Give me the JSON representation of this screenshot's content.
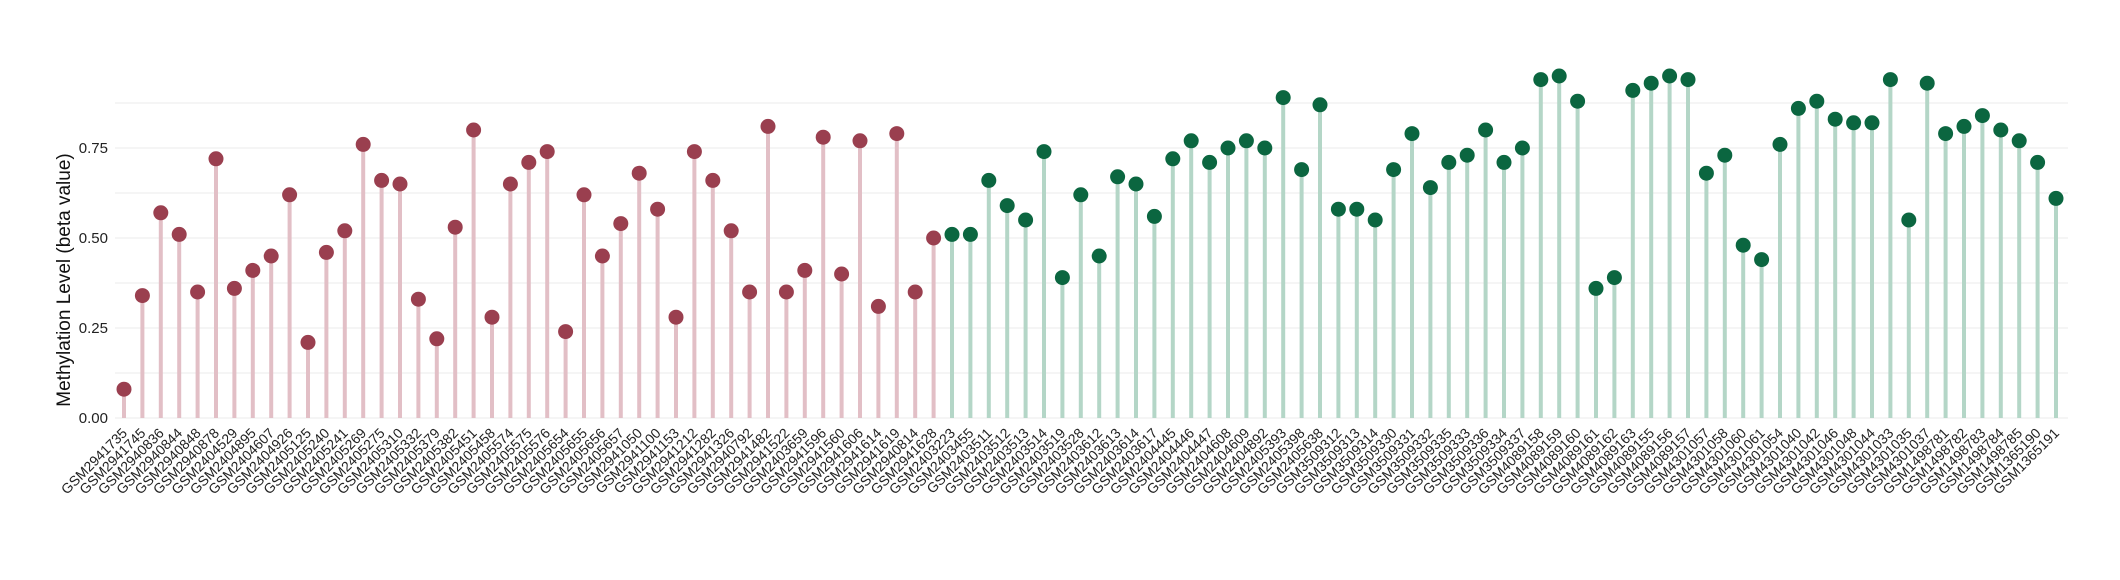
{
  "chart_data": {
    "type": "lollipop",
    "title": "",
    "xlabel": "",
    "ylabel": "Methylation Level (beta value)",
    "ylim": [
      0,
      1.0
    ],
    "yticks": [
      0.0,
      0.25,
      0.5,
      0.75
    ],
    "ytick_labels": [
      "0.00",
      "0.25",
      "0.50",
      "0.75"
    ],
    "grid": true,
    "colors": {
      "group1_stem": "#e2bfc6",
      "group1_dot": "#9a3f4f",
      "group2_stem": "#b4d6c7",
      "group2_dot": "#0b6640"
    },
    "samples": [
      {
        "label": "GSM2941735",
        "value": 0.08,
        "group": 1
      },
      {
        "label": "GSM2941745",
        "value": 0.34,
        "group": 1
      },
      {
        "label": "GSM2940836",
        "value": 0.57,
        "group": 1
      },
      {
        "label": "GSM2940844",
        "value": 0.51,
        "group": 1
      },
      {
        "label": "GSM2940848",
        "value": 0.35,
        "group": 1
      },
      {
        "label": "GSM2940878",
        "value": 0.72,
        "group": 1
      },
      {
        "label": "GSM2404529",
        "value": 0.36,
        "group": 1
      },
      {
        "label": "GSM2404895",
        "value": 0.41,
        "group": 1
      },
      {
        "label": "GSM2404607",
        "value": 0.45,
        "group": 1
      },
      {
        "label": "GSM2404926",
        "value": 0.62,
        "group": 1
      },
      {
        "label": "GSM2405125",
        "value": 0.21,
        "group": 1
      },
      {
        "label": "GSM2405240",
        "value": 0.46,
        "group": 1
      },
      {
        "label": "GSM2405241",
        "value": 0.52,
        "group": 1
      },
      {
        "label": "GSM2405269",
        "value": 0.76,
        "group": 1
      },
      {
        "label": "GSM2405275",
        "value": 0.66,
        "group": 1
      },
      {
        "label": "GSM2405310",
        "value": 0.65,
        "group": 1
      },
      {
        "label": "GSM2405332",
        "value": 0.33,
        "group": 1
      },
      {
        "label": "GSM2405379",
        "value": 0.22,
        "group": 1
      },
      {
        "label": "GSM2405382",
        "value": 0.53,
        "group": 1
      },
      {
        "label": "GSM2405451",
        "value": 0.8,
        "group": 1
      },
      {
        "label": "GSM2405458",
        "value": 0.28,
        "group": 1
      },
      {
        "label": "GSM2405574",
        "value": 0.65,
        "group": 1
      },
      {
        "label": "GSM2405575",
        "value": 0.71,
        "group": 1
      },
      {
        "label": "GSM2405576",
        "value": 0.74,
        "group": 1
      },
      {
        "label": "GSM2405654",
        "value": 0.24,
        "group": 1
      },
      {
        "label": "GSM2405655",
        "value": 0.62,
        "group": 1
      },
      {
        "label": "GSM2405656",
        "value": 0.45,
        "group": 1
      },
      {
        "label": "GSM2405657",
        "value": 0.54,
        "group": 1
      },
      {
        "label": "GSM2941050",
        "value": 0.68,
        "group": 1
      },
      {
        "label": "GSM2941100",
        "value": 0.58,
        "group": 1
      },
      {
        "label": "GSM2941153",
        "value": 0.28,
        "group": 1
      },
      {
        "label": "GSM2941212",
        "value": 0.74,
        "group": 1
      },
      {
        "label": "GSM2941282",
        "value": 0.66,
        "group": 1
      },
      {
        "label": "GSM2941326",
        "value": 0.52,
        "group": 1
      },
      {
        "label": "GSM2940792",
        "value": 0.35,
        "group": 1
      },
      {
        "label": "GSM2941482",
        "value": 0.81,
        "group": 1
      },
      {
        "label": "GSM2941522",
        "value": 0.35,
        "group": 1
      },
      {
        "label": "GSM2403659",
        "value": 0.41,
        "group": 1
      },
      {
        "label": "GSM2941596",
        "value": 0.78,
        "group": 1
      },
      {
        "label": "GSM2941560",
        "value": 0.4,
        "group": 1
      },
      {
        "label": "GSM2941606",
        "value": 0.77,
        "group": 1
      },
      {
        "label": "GSM2941614",
        "value": 0.31,
        "group": 1
      },
      {
        "label": "GSM2941619",
        "value": 0.79,
        "group": 1
      },
      {
        "label": "GSM2940814",
        "value": 0.35,
        "group": 1
      },
      {
        "label": "GSM2941628",
        "value": 0.5,
        "group": 1
      },
      {
        "label": "GSM2403223",
        "value": 0.51,
        "group": 2
      },
      {
        "label": "GSM2403455",
        "value": 0.51,
        "group": 2
      },
      {
        "label": "GSM2403511",
        "value": 0.66,
        "group": 2
      },
      {
        "label": "GSM2403512",
        "value": 0.59,
        "group": 2
      },
      {
        "label": "GSM2403513",
        "value": 0.55,
        "group": 2
      },
      {
        "label": "GSM2403514",
        "value": 0.74,
        "group": 2
      },
      {
        "label": "GSM2403519",
        "value": 0.39,
        "group": 2
      },
      {
        "label": "GSM2403528",
        "value": 0.62,
        "group": 2
      },
      {
        "label": "GSM2403612",
        "value": 0.45,
        "group": 2
      },
      {
        "label": "GSM2403613",
        "value": 0.67,
        "group": 2
      },
      {
        "label": "GSM2403614",
        "value": 0.65,
        "group": 2
      },
      {
        "label": "GSM2403617",
        "value": 0.56,
        "group": 2
      },
      {
        "label": "GSM2404445",
        "value": 0.72,
        "group": 2
      },
      {
        "label": "GSM2404446",
        "value": 0.77,
        "group": 2
      },
      {
        "label": "GSM2404447",
        "value": 0.71,
        "group": 2
      },
      {
        "label": "GSM2404608",
        "value": 0.75,
        "group": 2
      },
      {
        "label": "GSM2404609",
        "value": 0.77,
        "group": 2
      },
      {
        "label": "GSM2404892",
        "value": 0.75,
        "group": 2
      },
      {
        "label": "GSM2405393",
        "value": 0.89,
        "group": 2
      },
      {
        "label": "GSM2405398",
        "value": 0.69,
        "group": 2
      },
      {
        "label": "GSM2405638",
        "value": 0.87,
        "group": 2
      },
      {
        "label": "GSM3509312",
        "value": 0.58,
        "group": 2
      },
      {
        "label": "GSM3509313",
        "value": 0.58,
        "group": 2
      },
      {
        "label": "GSM3509314",
        "value": 0.55,
        "group": 2
      },
      {
        "label": "GSM3509330",
        "value": 0.69,
        "group": 2
      },
      {
        "label": "GSM3509331",
        "value": 0.79,
        "group": 2
      },
      {
        "label": "GSM3509332",
        "value": 0.64,
        "group": 2
      },
      {
        "label": "GSM3509335",
        "value": 0.71,
        "group": 2
      },
      {
        "label": "GSM3509333",
        "value": 0.73,
        "group": 2
      },
      {
        "label": "GSM3509336",
        "value": 0.8,
        "group": 2
      },
      {
        "label": "GSM3509334",
        "value": 0.71,
        "group": 2
      },
      {
        "label": "GSM3509337",
        "value": 0.75,
        "group": 2
      },
      {
        "label": "GSM4089158",
        "value": 0.94,
        "group": 2
      },
      {
        "label": "GSM4089159",
        "value": 0.95,
        "group": 2
      },
      {
        "label": "GSM4089160",
        "value": 0.88,
        "group": 2
      },
      {
        "label": "GSM4089161",
        "value": 0.36,
        "group": 2
      },
      {
        "label": "GSM4089162",
        "value": 0.39,
        "group": 2
      },
      {
        "label": "GSM4089163",
        "value": 0.91,
        "group": 2
      },
      {
        "label": "GSM4089155",
        "value": 0.93,
        "group": 2
      },
      {
        "label": "GSM4089156",
        "value": 0.95,
        "group": 2
      },
      {
        "label": "GSM4089157",
        "value": 0.94,
        "group": 2
      },
      {
        "label": "GSM4301057",
        "value": 0.68,
        "group": 2
      },
      {
        "label": "GSM4301058",
        "value": 0.73,
        "group": 2
      },
      {
        "label": "GSM4301060",
        "value": 0.48,
        "group": 2
      },
      {
        "label": "GSM4301061",
        "value": 0.44,
        "group": 2
      },
      {
        "label": "GSM4301054",
        "value": 0.76,
        "group": 2
      },
      {
        "label": "GSM4301040",
        "value": 0.86,
        "group": 2
      },
      {
        "label": "GSM4301042",
        "value": 0.88,
        "group": 2
      },
      {
        "label": "GSM4301046",
        "value": 0.83,
        "group": 2
      },
      {
        "label": "GSM4301048",
        "value": 0.82,
        "group": 2
      },
      {
        "label": "GSM4301044",
        "value": 0.82,
        "group": 2
      },
      {
        "label": "GSM4301033",
        "value": 0.94,
        "group": 2
      },
      {
        "label": "GSM4301035",
        "value": 0.55,
        "group": 2
      },
      {
        "label": "GSM4301037",
        "value": 0.93,
        "group": 2
      },
      {
        "label": "GSM1498781",
        "value": 0.79,
        "group": 2
      },
      {
        "label": "GSM1498782",
        "value": 0.81,
        "group": 2
      },
      {
        "label": "GSM1498783",
        "value": 0.84,
        "group": 2
      },
      {
        "label": "GSM1498784",
        "value": 0.8,
        "group": 2
      },
      {
        "label": "GSM1498785",
        "value": 0.77,
        "group": 2
      },
      {
        "label": "GSM1365190",
        "value": 0.71,
        "group": 2
      },
      {
        "label": "GSM1365191",
        "value": 0.61,
        "group": 2
      }
    ]
  }
}
